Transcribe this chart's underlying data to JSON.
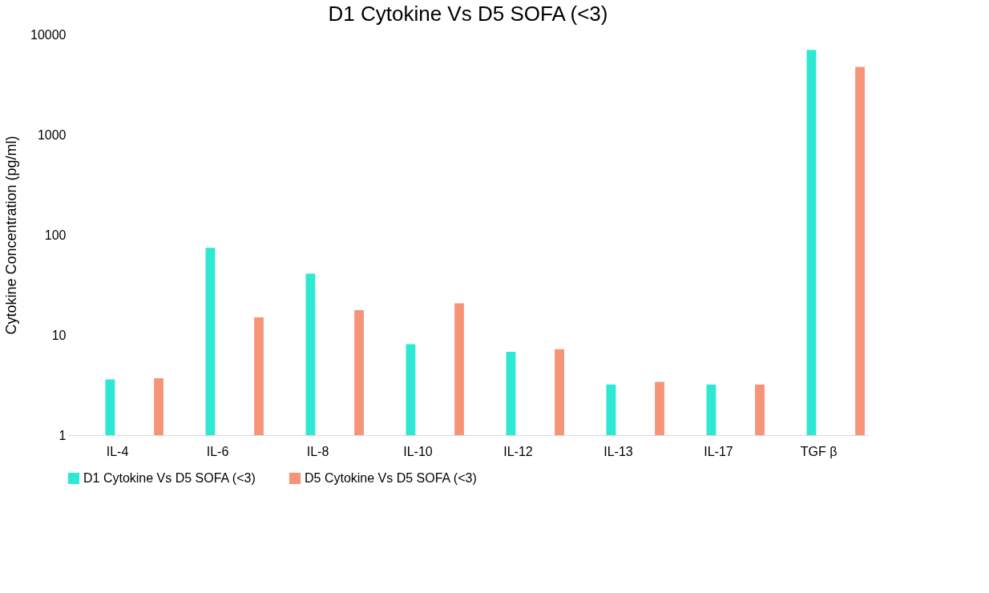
{
  "chart_data": {
    "type": "bar",
    "title": "D1 Cytokine Vs D5 SOFA (<3)",
    "ylabel": "Cytokine Concentration (pg/ml)",
    "categories": [
      "IL-4",
      "IL-6",
      "IL-8",
      "IL-10",
      "IL-12",
      "IL-13",
      "IL-17",
      "TGF β"
    ],
    "series": [
      {
        "name": "D1 Cytokine Vs D5 SOFA (<3)",
        "color": "#2ee8d3",
        "values": [
          3.6,
          74,
          41,
          8.1,
          6.8,
          3.2,
          3.2,
          7000
        ]
      },
      {
        "name": "D5 Cytokine Vs D5 SOFA (<3)",
        "color": "#f79478",
        "values": [
          3.7,
          15,
          17.7,
          20.7,
          7.2,
          3.4,
          3.2,
          4750
        ]
      }
    ],
    "log": true,
    "ylim": [
      1,
      10000
    ],
    "yticks": [
      1,
      10,
      100,
      1000,
      10000
    ],
    "grid": false,
    "legend": "bottom"
  }
}
